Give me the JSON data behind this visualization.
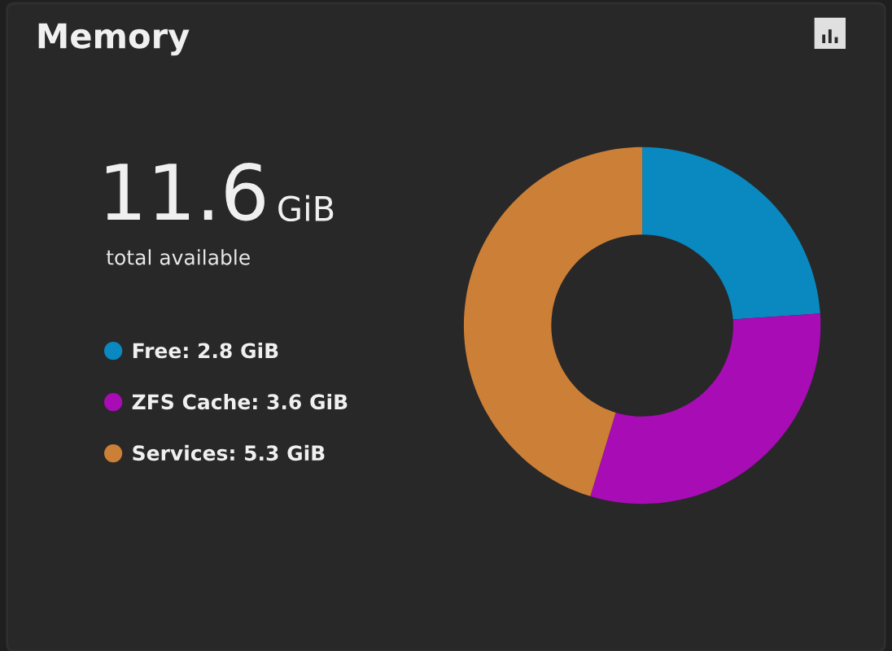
{
  "chart_data": {
    "type": "donut",
    "title": "Memory",
    "categories": [
      "Free",
      "ZFS Cache",
      "Services"
    ],
    "values": [
      2.8,
      3.6,
      5.3
    ],
    "value_labels": [
      "2.8 GiB",
      "3.6 GiB",
      "5.3 GiB"
    ],
    "colors": [
      "#0a89c0",
      "#a80cb5",
      "#cc7f36"
    ],
    "legend": "left",
    "annotations": [
      "11.6",
      "GiB",
      "total available"
    ]
  }
}
